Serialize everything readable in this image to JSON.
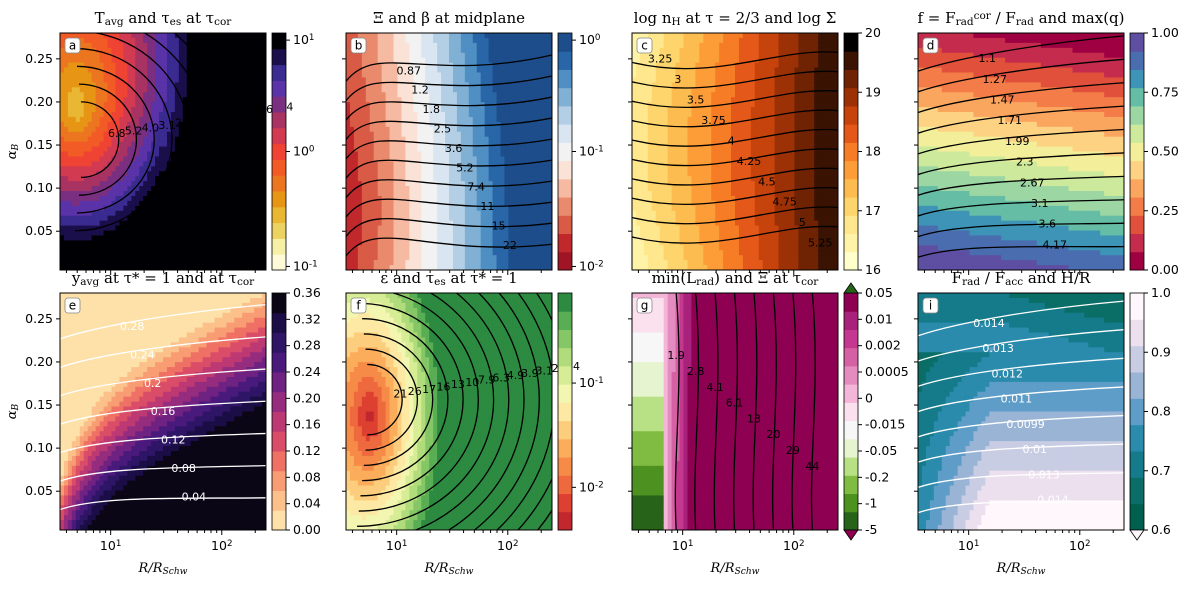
{
  "figure": {
    "x_axis_label": "R/R_Schw",
    "y_axis_label": "α_B"
  },
  "chart_data": [
    {
      "id": "a",
      "type": "heatmap",
      "title": "T_avg and τ_es at τ_cor",
      "xlabel": "",
      "ylabel": "α_B",
      "xscale": "log",
      "xlim": [
        3.5,
        250
      ],
      "ylim": [
        0.005,
        0.28
      ],
      "yticks": [
        "0.05",
        "0.10",
        "0.15",
        "0.20",
        "0.25"
      ],
      "xticks": [],
      "colorbar": {
        "scale": "log",
        "range": [
          0.1,
          10
        ],
        "ticks": [
          "10^1",
          "10^0",
          "10^-1"
        ],
        "colors": [
          "#fffbd8",
          "#f6f0a6",
          "#ecd260",
          "#e9b733",
          "#e79515",
          "#ec7620",
          "#f25a26",
          "#ef4333",
          "#d23a52",
          "#a83363",
          "#7a2f80",
          "#5a33a8",
          "#3a2b90",
          "#1a0f4a",
          "#000004"
        ]
      },
      "contour_labels": [
        "6.8",
        "5.2",
        "4.0",
        "3.1",
        "2.3",
        "1.8",
        "1.4",
        "0.9",
        "1.1",
        "0.65",
        "0.4"
      ],
      "label_letter": "a"
    },
    {
      "id": "b",
      "type": "heatmap",
      "title": "Ξ and β at midplane",
      "xlabel": "",
      "ylabel": "",
      "xscale": "log",
      "xlim": [
        3.5,
        250
      ],
      "ylim": [
        0.005,
        0.28
      ],
      "colorbar": {
        "scale": "log",
        "range": [
          0.01,
          2
        ],
        "ticks": [
          "10^0",
          "10^-1",
          "10^-2"
        ],
        "colors": [
          "#a01525",
          "#c0282c",
          "#d95a45",
          "#ea8a6d",
          "#f6b9a2",
          "#fae2d6",
          "#f2f2f3",
          "#d9e6f1",
          "#b3cfe5",
          "#80b1d5",
          "#4f8fc3",
          "#2966a8",
          "#1d4d8a"
        ]
      },
      "contour_labels": [
        "0.87",
        "1.2",
        "1.8",
        "2.5",
        "3.6",
        "5.2",
        "7.4",
        "11",
        "15",
        "22"
      ],
      "label_letter": "b"
    },
    {
      "id": "c",
      "type": "heatmap",
      "title": "log n_H at τ = 2/3 and log Σ",
      "xlabel": "",
      "ylabel": "",
      "xscale": "log",
      "xlim": [
        3.5,
        250
      ],
      "ylim": [
        0.005,
        0.28
      ],
      "colorbar": {
        "scale": "linear",
        "range": [
          16,
          20
        ],
        "ticks": [
          "20",
          "19",
          "18",
          "17",
          "16"
        ],
        "colors": [
          "#ffffcc",
          "#fff3a8",
          "#fee78c",
          "#fed56c",
          "#fdbc4f",
          "#fd9d38",
          "#f67c25",
          "#e4591a",
          "#c6430c",
          "#9c3106",
          "#6f2303",
          "#3a1302",
          "#000000"
        ]
      },
      "contour_labels": [
        "3.25",
        "3",
        "3.5",
        "3.75",
        "4",
        "4.25",
        "4.5",
        "4.75",
        "5",
        "5.25"
      ],
      "label_letter": "c"
    },
    {
      "id": "d",
      "type": "heatmap",
      "title": "f = F_rad^cor / F_rad and max(q)",
      "xlabel": "",
      "ylabel": "",
      "xscale": "log",
      "xlim": [
        3.5,
        250
      ],
      "ylim": [
        0.005,
        0.28
      ],
      "colorbar": {
        "scale": "linear",
        "range": [
          0,
          1
        ],
        "ticks": [
          "1.00",
          "0.75",
          "0.50",
          "0.25",
          "0.00"
        ],
        "colors": [
          "#9e0142",
          "#c42b4d",
          "#e0503a",
          "#f47c48",
          "#fba65f",
          "#fdd383",
          "#f2ee9a",
          "#cdea9c",
          "#9cd6a3",
          "#66bda5",
          "#3d94b6",
          "#4a6db0",
          "#5e4fa2"
        ]
      },
      "contour_labels": [
        "1.1",
        "1.27",
        "1.47",
        "1.71",
        "1.99",
        "2.3",
        "2.67",
        "3.1",
        "3.6",
        "4.17"
      ],
      "label_letter": "d"
    },
    {
      "id": "e",
      "type": "heatmap",
      "title": "y_avg at τ* = 1 and at τ_cor",
      "xlabel": "R/R_Schw",
      "ylabel": "α_B",
      "xscale": "log",
      "xlim": [
        3.5,
        250
      ],
      "ylim": [
        0.005,
        0.28
      ],
      "xticks": [
        "10^1",
        "10^2"
      ],
      "colorbar": {
        "scale": "linear",
        "range": [
          0,
          0.36
        ],
        "ticks": [
          "0.36",
          "0.32",
          "0.28",
          "0.24",
          "0.20",
          "0.16",
          "0.12",
          "0.08",
          "0.04",
          "0.00"
        ],
        "colors": [
          "#fde1a9",
          "#fcc18b",
          "#f89c73",
          "#ef7064",
          "#da4d69",
          "#bd3973",
          "#962c7e",
          "#6f2281",
          "#491a7c",
          "#2e1566",
          "#1b0d45",
          "#0a0616"
        ]
      },
      "contour_labels": [
        "0.28",
        "0.24",
        "0.2",
        "0.16",
        "0.12",
        "0.08",
        "0.04"
      ],
      "label_letter": "e"
    },
    {
      "id": "f",
      "type": "heatmap",
      "title": "ε and τ_es at τ* = 1",
      "xlabel": "R/R_Schw",
      "ylabel": "",
      "xscale": "log",
      "xlim": [
        3.5,
        250
      ],
      "ylim": [
        0.005,
        0.28
      ],
      "xticks": [
        "10^1",
        "10^2"
      ],
      "colorbar": {
        "scale": "log",
        "range": [
          0.002,
          0.6
        ],
        "ticks": [
          "10^-1",
          "10^-2"
        ],
        "colors": [
          "#c1272d",
          "#dd4030",
          "#ee6a3e",
          "#f68b47",
          "#fbad5b",
          "#fdcd7e",
          "#fde9a4",
          "#f3f6b0",
          "#d7ed95",
          "#b1dc7b",
          "#85c766",
          "#59ae54",
          "#2c8a41"
        ]
      },
      "contour_labels": [
        "21",
        "26",
        "17",
        "16",
        "13",
        "10",
        "7.9",
        "6.3",
        "4.9",
        "3.9",
        "3.1",
        "29",
        "44"
      ],
      "label_letter": "f"
    },
    {
      "id": "g",
      "type": "heatmap",
      "title": "min(L_rad) and Ξ at τ_cor",
      "xlabel": "R/R_Schw",
      "ylabel": "",
      "xscale": "log",
      "xlim": [
        3.5,
        250
      ],
      "ylim": [
        0.005,
        0.28
      ],
      "xticks": [
        "10^1",
        "10^2"
      ],
      "colorbar": {
        "scale": "symlog",
        "range": [
          -5,
          0.05
        ],
        "ticks": [
          "0.05",
          "0.01",
          "0.002",
          "0.0005",
          "0",
          "-0.015",
          "-0.05",
          "-0.2",
          "-1",
          "-5"
        ],
        "colors": [
          "#276419",
          "#4d9221",
          "#7fbc41",
          "#b8e186",
          "#e6f5d0",
          "#f7f7f7",
          "#fbe1ee",
          "#f4b6d8",
          "#e48cc0",
          "#d560a4",
          "#c4388f",
          "#a8217a",
          "#8e0152"
        ]
      },
      "contour_labels": [
        "1.9",
        "2.8",
        "4.1",
        "6.1",
        "13",
        "20",
        "29",
        "44"
      ],
      "label_letter": "g"
    },
    {
      "id": "i",
      "type": "heatmap",
      "title": "F_rad / F_acc and H/R",
      "xlabel": "R/R_Schw",
      "ylabel": "",
      "xscale": "log",
      "xlim": [
        3.5,
        250
      ],
      "ylim": [
        0.005,
        0.28
      ],
      "xticks": [
        "10^1",
        "10^2"
      ],
      "colorbar": {
        "scale": "linear",
        "range": [
          0.6,
          1.0
        ],
        "ticks": [
          "1.0",
          "0.9",
          "0.8",
          "0.7",
          "0.6"
        ],
        "colors": [
          "#005f4d",
          "#0b6e66",
          "#157b8a",
          "#2a8bad",
          "#5e9dc8",
          "#9ab4d6",
          "#c9cde4",
          "#ecdfee",
          "#fff7fb"
        ]
      },
      "contour_labels": [
        "0.014",
        "0.013",
        "0.012",
        "0.011",
        "0.0099",
        "0.01",
        "0.013",
        "0.014"
      ],
      "label_letter": "i"
    }
  ]
}
